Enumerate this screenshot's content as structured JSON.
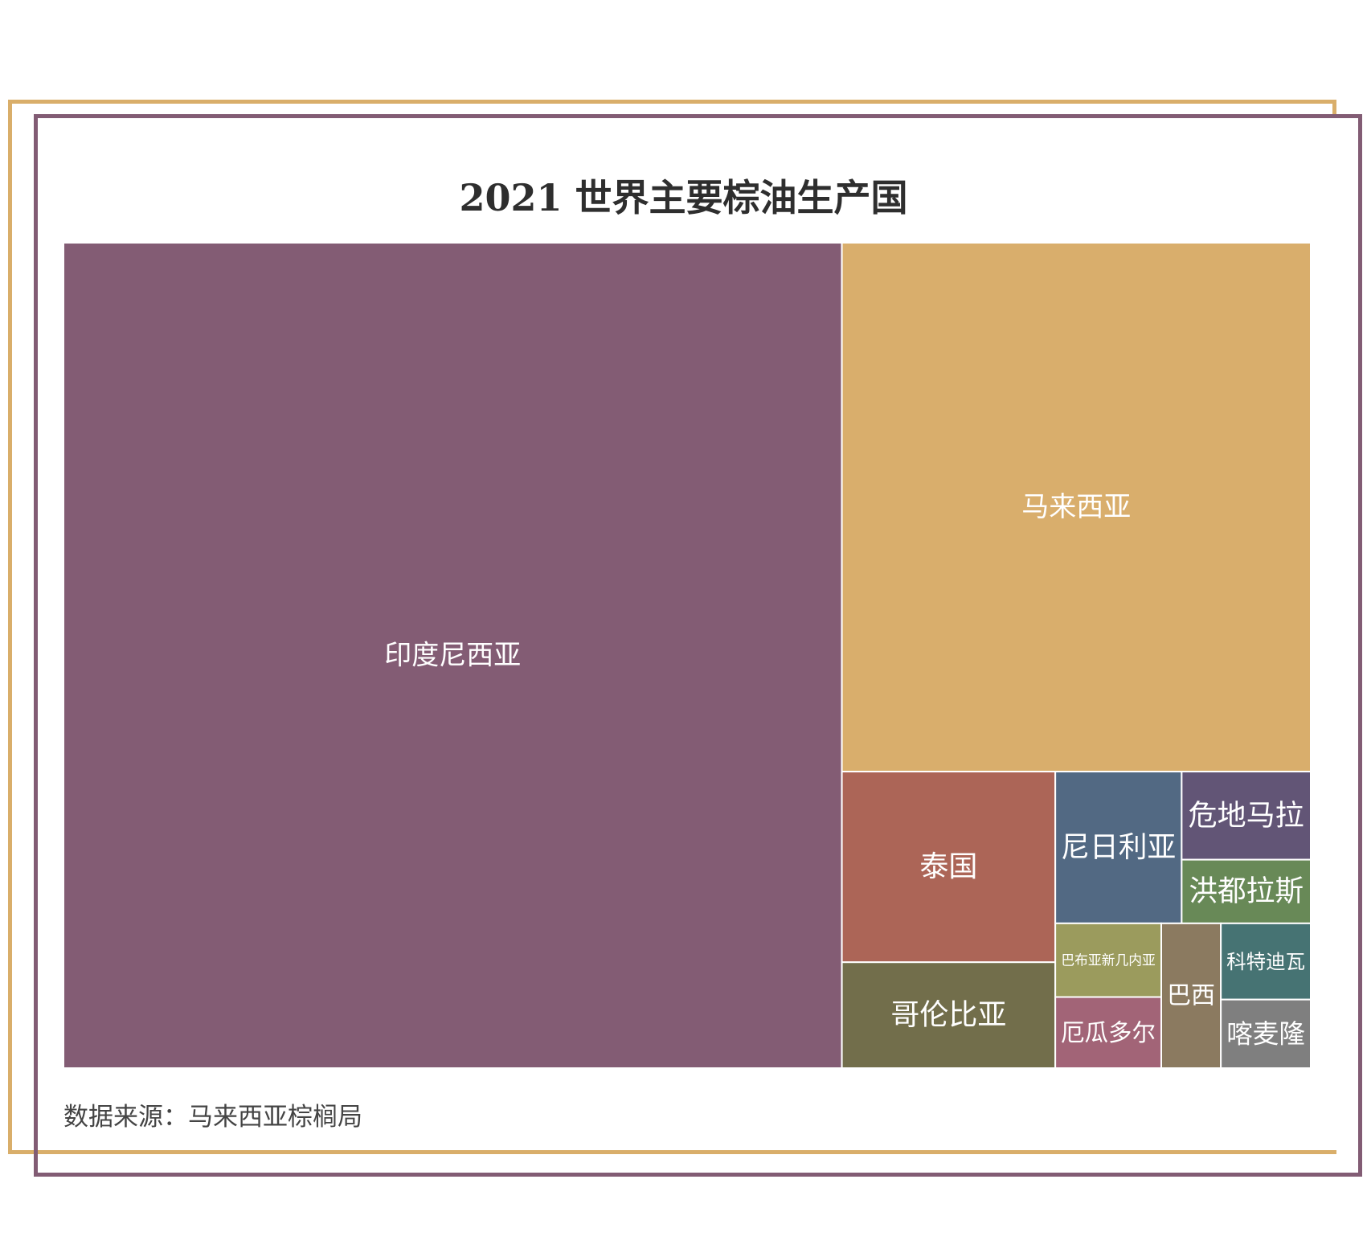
{
  "chart_data": {
    "type": "treemap",
    "title": "2021 世界主要棕油生产国",
    "source": "数据来源：马来西亚棕榈局",
    "items": [
      {
        "name": "印度尼西亚",
        "value": 46.9,
        "color": "#835c74"
      },
      {
        "name": "马来西亚",
        "value": 18.1,
        "color": "#d9ae6c"
      },
      {
        "name": "泰国",
        "value": 2.97,
        "color": "#ac6557"
      },
      {
        "name": "哥伦比亚",
        "value": 1.65,
        "color": "#726e4b"
      },
      {
        "name": "尼日利亚",
        "value": 1.4,
        "color": "#526983"
      },
      {
        "name": "危地马拉",
        "value": 0.83,
        "color": "#625576"
      },
      {
        "name": "洪都拉斯",
        "value": 0.6,
        "color": "#688957"
      },
      {
        "name": "巴布亚新几内亚",
        "value": 0.57,
        "color": "#9b9b5d"
      },
      {
        "name": "厄瓜多尔",
        "value": 0.55,
        "color": "#a26477"
      },
      {
        "name": "巴西",
        "value": 0.63,
        "color": "#8b7a60"
      },
      {
        "name": "科特迪瓦",
        "value": 0.5,
        "color": "#467373"
      },
      {
        "name": "喀麦隆",
        "value": 0.45,
        "color": "#7f7f7f"
      }
    ]
  }
}
